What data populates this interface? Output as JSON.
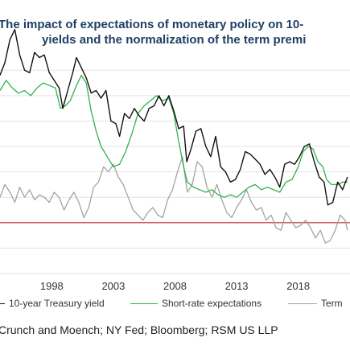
{
  "chart_data": {
    "type": "line",
    "title_line1": "The impact of expectations of monetary policy on 10-",
    "title_line2": "yields and the normalization of the term premi",
    "x_ticks": [
      "1998",
      "2003",
      "2008",
      "2013",
      "2018"
    ],
    "xlim": [
      1993.8,
      2022.2
    ],
    "ylim": [
      -2.0,
      6.8
    ],
    "reference_line": {
      "value": 0,
      "color": "#c0302a"
    },
    "grid": "horizontal",
    "legend_position": "bottom",
    "series": [
      {
        "name": "10-year Treasury yield",
        "color": "#111111",
        "x": [
          1993.8,
          1994.2,
          1994.6,
          1995.0,
          1995.4,
          1995.8,
          1996.2,
          1996.6,
          1997.0,
          1997.4,
          1997.8,
          1998.2,
          1998.6,
          1998.9,
          1999.3,
          1999.7,
          2000.0,
          2000.4,
          2000.8,
          2001.2,
          2001.6,
          2002.0,
          2002.4,
          2002.8,
          2003.2,
          2003.5,
          2003.9,
          2004.3,
          2004.7,
          2005.1,
          2005.5,
          2005.9,
          2006.3,
          2006.7,
          2007.1,
          2007.5,
          2007.9,
          2008.3,
          2008.7,
          2008.95,
          2009.3,
          2009.7,
          2010.1,
          2010.5,
          2010.9,
          2011.3,
          2011.7,
          2012.1,
          2012.5,
          2012.9,
          2013.3,
          2013.7,
          2014.1,
          2014.5,
          2014.9,
          2015.3,
          2015.7,
          2016.1,
          2016.5,
          2016.9,
          2017.3,
          2017.7,
          2018.1,
          2018.5,
          2018.9,
          2019.3,
          2019.7,
          2020.1,
          2020.4,
          2020.8,
          2021.2,
          2021.6,
          2022.0
        ],
        "values": [
          5.8,
          6.3,
          7.2,
          7.6,
          6.6,
          6.0,
          5.9,
          6.7,
          6.5,
          6.6,
          5.9,
          5.6,
          5.3,
          4.5,
          5.2,
          5.9,
          6.5,
          6.1,
          5.7,
          5.1,
          5.2,
          4.9,
          5.2,
          4.0,
          3.9,
          3.4,
          4.3,
          4.1,
          4.5,
          4.2,
          4.0,
          4.5,
          4.6,
          5.0,
          4.6,
          5.0,
          4.4,
          3.7,
          3.8,
          2.4,
          2.9,
          3.6,
          3.7,
          3.0,
          2.6,
          3.4,
          2.2,
          2.0,
          1.6,
          1.7,
          2.1,
          2.8,
          2.7,
          2.5,
          2.3,
          1.9,
          2.1,
          1.8,
          1.4,
          2.3,
          2.4,
          2.3,
          2.6,
          3.0,
          3.1,
          2.4,
          1.8,
          1.6,
          0.7,
          0.8,
          1.6,
          1.3,
          1.8
        ]
      },
      {
        "name": "Short-rate expectations",
        "color": "#2fb34a",
        "x": [
          1993.8,
          1994.3,
          1994.8,
          1995.3,
          1995.8,
          1996.3,
          1996.8,
          1997.3,
          1997.8,
          1998.3,
          1998.7,
          1999.1,
          1999.5,
          2000.0,
          2000.4,
          2000.8,
          2001.2,
          2001.6,
          2002.0,
          2002.5,
          2003.0,
          2003.5,
          2004.0,
          2004.5,
          2005.0,
          2005.5,
          2006.0,
          2006.5,
          2007.0,
          2007.5,
          2007.9,
          2008.3,
          2008.7,
          2009.0,
          2009.5,
          2010.0,
          2010.5,
          2011.0,
          2011.5,
          2012.0,
          2012.5,
          2013.0,
          2013.5,
          2014.0,
          2014.5,
          2015.0,
          2015.5,
          2016.0,
          2016.5,
          2017.0,
          2017.5,
          2018.0,
          2018.4,
          2018.8,
          2019.2,
          2019.6,
          2020.0,
          2020.3,
          2020.7,
          2021.2,
          2021.6,
          2022.0
        ],
        "values": [
          5.2,
          5.6,
          5.3,
          5.1,
          5.2,
          5.0,
          5.3,
          5.5,
          5.4,
          5.3,
          4.5,
          4.6,
          4.8,
          5.4,
          5.8,
          5.5,
          4.4,
          3.6,
          3.0,
          2.6,
          2.2,
          2.3,
          2.8,
          3.5,
          4.3,
          4.6,
          4.8,
          5.0,
          4.8,
          4.9,
          4.3,
          3.2,
          2.2,
          1.6,
          1.4,
          1.3,
          1.2,
          1.3,
          1.1,
          1.0,
          1.1,
          1.0,
          1.2,
          1.4,
          1.5,
          1.3,
          1.4,
          1.3,
          1.2,
          1.6,
          1.7,
          2.2,
          2.8,
          3.0,
          2.9,
          2.4,
          2.2,
          1.7,
          1.5,
          1.5,
          1.6,
          1.6
        ]
      },
      {
        "name": "Term",
        "color": "#a3a3a3",
        "x": [
          1993.8,
          1994.2,
          1994.6,
          1995.0,
          1995.4,
          1995.8,
          1996.2,
          1996.6,
          1997.0,
          1997.4,
          1997.8,
          1998.2,
          1998.6,
          1999.0,
          1999.4,
          1999.8,
          2000.2,
          2000.6,
          2001.0,
          2001.4,
          2001.8,
          2002.2,
          2002.6,
          2003.0,
          2003.4,
          2003.8,
          2004.2,
          2004.6,
          2005.0,
          2005.4,
          2005.8,
          2006.2,
          2006.6,
          2007.0,
          2007.4,
          2007.8,
          2008.2,
          2008.6,
          2009.0,
          2009.4,
          2009.8,
          2010.2,
          2010.6,
          2011.0,
          2011.4,
          2011.8,
          2012.2,
          2012.6,
          2013.0,
          2013.4,
          2013.8,
          2014.2,
          2014.6,
          2015.0,
          2015.4,
          2015.8,
          2016.2,
          2016.6,
          2017.0,
          2017.4,
          2017.8,
          2018.2,
          2018.6,
          2019.0,
          2019.4,
          2019.8,
          2020.2,
          2020.6,
          2021.0,
          2021.4,
          2021.8,
          2022.0
        ],
        "values": [
          1.0,
          1.5,
          1.2,
          0.8,
          1.4,
          1.0,
          1.3,
          0.9,
          1.1,
          1.0,
          0.8,
          1.2,
          1.0,
          0.5,
          0.9,
          1.2,
          0.8,
          0.2,
          0.6,
          1.4,
          1.6,
          2.2,
          2.0,
          2.3,
          1.8,
          1.5,
          1.0,
          0.5,
          0.3,
          0.1,
          0.4,
          0.6,
          0.3,
          0.2,
          0.9,
          1.3,
          2.0,
          2.6,
          1.2,
          1.5,
          2.4,
          2.2,
          1.4,
          1.0,
          1.5,
          0.9,
          0.4,
          0.2,
          0.6,
          0.9,
          1.3,
          0.8,
          0.5,
          0.6,
          0.1,
          0.3,
          -0.2,
          -0.3,
          0.4,
          0.1,
          -0.2,
          -0.1,
          0.1,
          -0.2,
          -0.6,
          -0.3,
          -0.8,
          -0.7,
          -0.3,
          0.3,
          0.1,
          -0.3
        ]
      }
    ]
  },
  "legend": {
    "items": [
      {
        "label": "10-year Treasury yield",
        "color": "#111111",
        "style": "solid"
      },
      {
        "label": "Short-rate expectations",
        "color": "#2fb34a",
        "style": "solid"
      },
      {
        "label": "Term",
        "color": "#a3a3a3",
        "style": "solid"
      }
    ]
  },
  "source_text": "Crunch and Moench; NY Fed; Bloomberg; RSM US LLP"
}
